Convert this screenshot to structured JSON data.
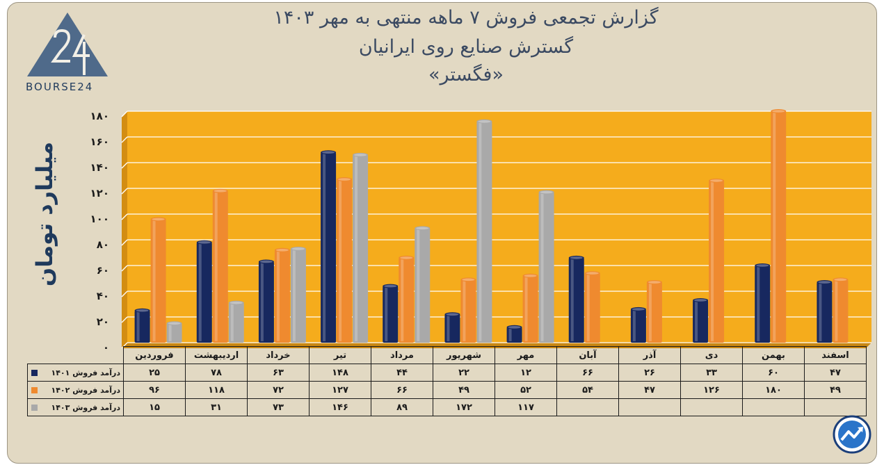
{
  "title": {
    "line1": "گزارش تجمعی فروش ۷ ماهه منتهی به مهر ۱۴۰۳",
    "line2": "گسترش صنایع روی ایرانیان",
    "line3": "«فگستر»"
  },
  "logo": {
    "text": "BOURSE24",
    "icon": "bourse24-logo"
  },
  "badge": {
    "icon": "trend-arrow-badge-icon"
  },
  "colors": {
    "s1401": "#17285f",
    "s1402": "#ef8a2f",
    "s1403": "#a9a9a9",
    "plot_bg": "#f5ac1c",
    "frame_bg": "#e2d9c3"
  },
  "chart_data": {
    "type": "bar",
    "ylabel": "میلیارد تومان",
    "ylim": [
      0,
      180
    ],
    "yticks": [
      "۰",
      "۲۰",
      "۴۰",
      "۶۰",
      "۸۰",
      "۱۰۰",
      "۱۲۰",
      "۱۴۰",
      "۱۶۰",
      "۱۸۰"
    ],
    "grid": true,
    "categories": [
      "فروردین",
      "اردیبهشت",
      "خرداد",
      "تیر",
      "مرداد",
      "شهریور",
      "مهر",
      "آبان",
      "آذر",
      "دی",
      "بهمن",
      "اسفند"
    ],
    "series": [
      {
        "name": "درآمد فروش ۱۴۰۱",
        "color": "#17285f",
        "values": [
          25,
          78,
          63,
          148,
          44,
          22,
          12,
          66,
          26,
          33,
          60,
          47
        ],
        "labels": [
          "۲۵",
          "۷۸",
          "۶۳",
          "۱۴۸",
          "۴۴",
          "۲۲",
          "۱۲",
          "۶۶",
          "۲۶",
          "۳۳",
          "۶۰",
          "۴۷"
        ]
      },
      {
        "name": "درآمد فروش ۱۴۰۲",
        "color": "#ef8a2f",
        "values": [
          96,
          118,
          72,
          127,
          66,
          49,
          52,
          54,
          47,
          126,
          180,
          49
        ],
        "labels": [
          "۹۶",
          "۱۱۸",
          "۷۲",
          "۱۲۷",
          "۶۶",
          "۴۹",
          "۵۲",
          "۵۴",
          "۴۷",
          "۱۲۶",
          "۱۸۰",
          "۴۹"
        ]
      },
      {
        "name": "درآمد فروش ۱۴۰۳",
        "color": "#a9a9a9",
        "values": [
          15,
          31,
          73,
          146,
          89,
          172,
          117,
          null,
          null,
          null,
          null,
          null
        ],
        "labels": [
          "۱۵",
          "۳۱",
          "۷۳",
          "۱۴۶",
          "۸۹",
          "۱۷۲",
          "۱۱۷",
          "",
          "",
          "",
          "",
          ""
        ]
      }
    ]
  }
}
